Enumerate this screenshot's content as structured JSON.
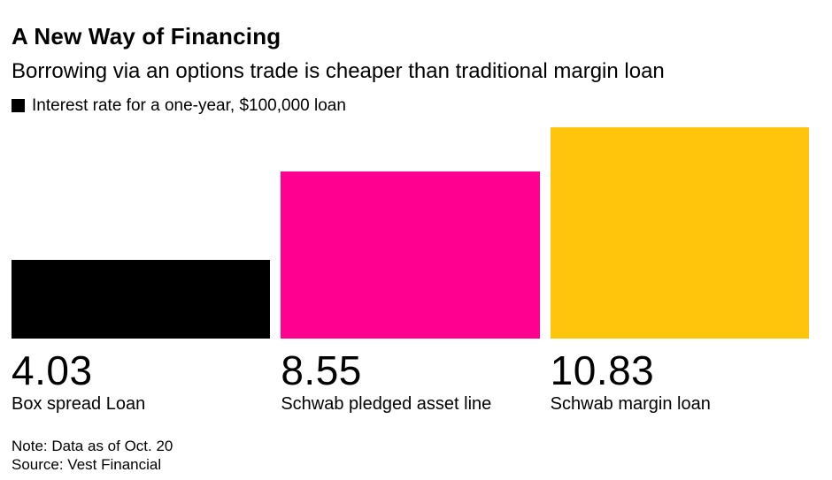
{
  "header": {
    "title": "A New Way of Financing",
    "subtitle": "Borrowing via an options trade is cheaper than traditional margin loan"
  },
  "legend": {
    "label": "Interest rate for a one-year, $100,000 loan",
    "swatch_color": "#000000"
  },
  "chart_data": {
    "type": "bar",
    "title": "A New Way of Financing",
    "subtitle": "Borrowing via an options trade is cheaper than traditional margin loan",
    "series_label": "Interest rate for a one-year, $100,000 loan",
    "categories": [
      "Box spread Loan",
      "Schwab pledged asset line",
      "Schwab margin loan"
    ],
    "values": [
      4.03,
      8.55,
      10.83
    ],
    "value_labels": [
      "4.03",
      "8.55",
      "10.83"
    ],
    "colors": [
      "#000000",
      "#FF0090",
      "#FFC40C"
    ],
    "orientation": "vertical",
    "ylim": [
      0,
      10.83
    ],
    "grid": false,
    "axes_shown": false,
    "legend_position": "top-left",
    "value_label_position": "below-bar"
  },
  "footer": {
    "note": "Note: Data as of Oct. 20",
    "source": "Source: Vest Financial"
  },
  "colors": {
    "background": "#FFFFFF",
    "text": "#000000",
    "bar_black": "#000000",
    "bar_pink": "#FF0090",
    "bar_yellow": "#FFC40C"
  }
}
